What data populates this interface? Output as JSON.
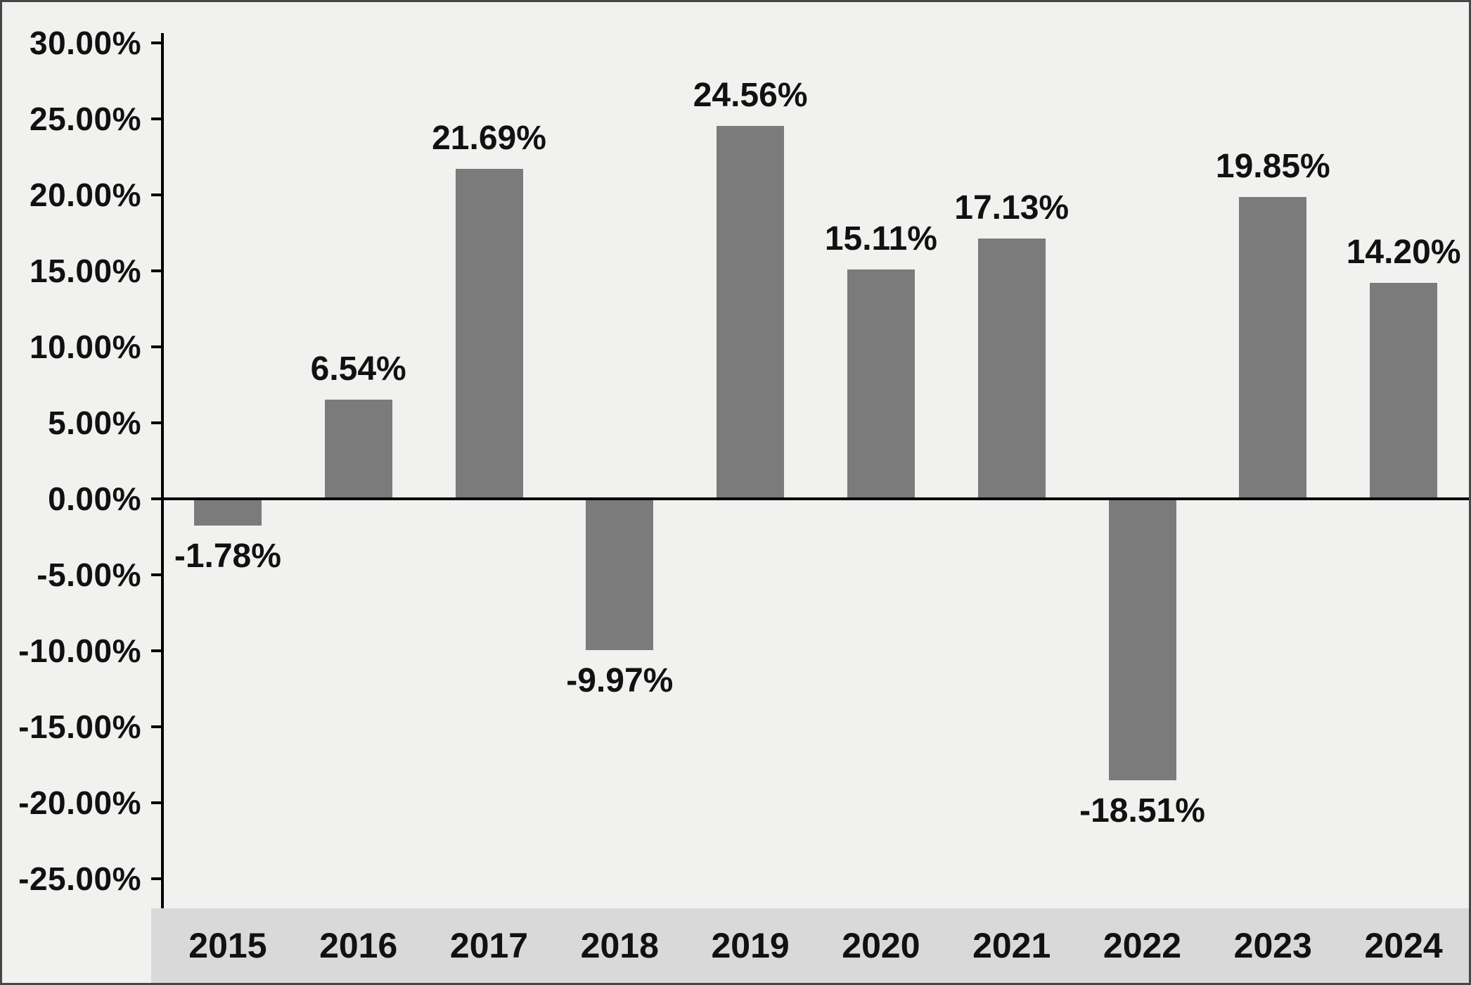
{
  "chart_data": {
    "type": "bar",
    "categories": [
      "2015",
      "2016",
      "2017",
      "2018",
      "2019",
      "2020",
      "2021",
      "2022",
      "2023",
      "2024"
    ],
    "values": [
      -1.78,
      6.54,
      21.69,
      -9.97,
      24.56,
      15.11,
      17.13,
      -18.51,
      19.85,
      14.2
    ],
    "labels": [
      "-1.78%",
      "6.54%",
      "21.69%",
      "-9.97%",
      "24.56%",
      "15.11%",
      "17.13%",
      "-18.51%",
      "19.85%",
      "14.20%"
    ],
    "title": "",
    "xlabel": "",
    "ylabel": "",
    "ylim": [
      -25,
      30
    ],
    "ytick_step": 5,
    "ytick_labels": [
      "30.00%",
      "25.00%",
      "20.00%",
      "15.00%",
      "10.00%",
      "5.00%",
      "0.00%",
      "-5.00%",
      "-10.00%",
      "-15.00%",
      "-20.00%",
      "-25.00%"
    ],
    "grid": false,
    "legend": "none",
    "colors": {
      "bar": "#7b7b7b",
      "background": "#f1f1ef",
      "xband": "#d9d9d9",
      "axis": "#000000",
      "text": "#111111"
    }
  }
}
